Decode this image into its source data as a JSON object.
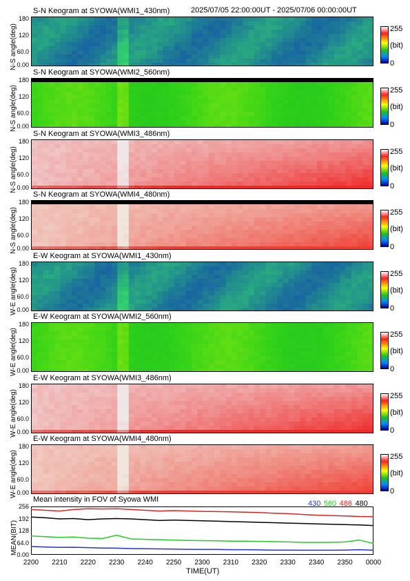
{
  "header": {
    "date_range": "2025/07/05 22:00:00UT - 2025/07/06 00:00:00UT"
  },
  "keograms": [
    {
      "title": "S-N Keogram at SYOWA(WMI1_430nm)",
      "ylabel": "N-S angle(deg)",
      "base": "blue"
    },
    {
      "title": "S-N Keogram at SYOWA(WMI2_560nm)",
      "ylabel": "N-S angle(deg)",
      "base": "green"
    },
    {
      "title": "S-N Keogram at SYOWA(WMI3_486nm)",
      "ylabel": "N-S angle(deg)",
      "base": "red"
    },
    {
      "title": "S-N Keogram at SYOWA(WMI4_480nm)",
      "ylabel": "N-S angle(deg)",
      "base": "red2"
    },
    {
      "title": "E-W Keogram at SYOWA(WMI1_430nm)",
      "ylabel": "W-E angle(deg)",
      "base": "blue"
    },
    {
      "title": "E-W Keogram at SYOWA(WMI2_560nm)",
      "ylabel": "W-E angle(deg)",
      "base": "green"
    },
    {
      "title": "E-W Keogram at SYOWA(WMI3_486nm)",
      "ylabel": "W-E angle(deg)",
      "base": "red"
    },
    {
      "title": "E-W Keogram at SYOWA(WMI4_480nm)",
      "ylabel": "W-E angle(deg)",
      "base": "red2"
    }
  ],
  "angle_ticks": [
    "180",
    "120",
    "60.0",
    "0.00"
  ],
  "colorbar": {
    "max_label": "255",
    "unit_label": "(bit)",
    "min_label": "0"
  },
  "chart_data": {
    "type": "line",
    "title": "Mean intensity in FOV of Syowa WMI",
    "xlabel": "TIME(UT)",
    "ylabel": "MEAN(BIT)",
    "ylim": [
      0,
      256
    ],
    "yticks": [
      "256",
      "192",
      "128",
      "64.0",
      "0.00"
    ],
    "xticks": [
      "2200",
      "2210",
      "2220",
      "2230",
      "2240",
      "2250",
      "2300",
      "2310",
      "2320",
      "2330",
      "2340",
      "2350",
      "0000"
    ],
    "x": [
      0,
      5,
      10,
      15,
      20,
      25,
      30,
      35,
      40,
      45,
      50,
      55,
      60,
      65,
      70,
      75,
      80,
      85,
      90,
      95,
      100,
      105,
      110,
      115,
      120
    ],
    "series": [
      {
        "name": "430",
        "color": "#2233dd",
        "values": [
          44,
          41,
          39,
          40,
          38,
          36,
          35,
          33,
          32,
          31,
          30,
          29,
          28,
          28,
          27,
          27,
          26,
          25,
          25,
          24,
          24,
          24,
          25,
          27,
          24
        ]
      },
      {
        "name": "560",
        "color": "#22cc22",
        "values": [
          100,
          96,
          92,
          94,
          88,
          86,
          104,
          84,
          82,
          80,
          78,
          76,
          75,
          74,
          72,
          72,
          71,
          70,
          68,
          66,
          66,
          66,
          68,
          78,
          60
        ]
      },
      {
        "name": "486",
        "color": "#dd2222",
        "values": [
          240,
          236,
          232,
          240,
          244,
          243,
          244,
          240,
          236,
          232,
          234,
          232,
          230,
          229,
          228,
          226,
          224,
          220,
          218,
          214,
          210,
          208,
          206,
          203,
          202
        ]
      },
      {
        "name": "480",
        "color": "#000000",
        "values": [
          200,
          196,
          190,
          192,
          186,
          190,
          192,
          190,
          186,
          182,
          184,
          182,
          180,
          178,
          176,
          174,
          172,
          170,
          168,
          166,
          164,
          162,
          160,
          158,
          155
        ]
      }
    ],
    "legend_position": "top-right"
  }
}
